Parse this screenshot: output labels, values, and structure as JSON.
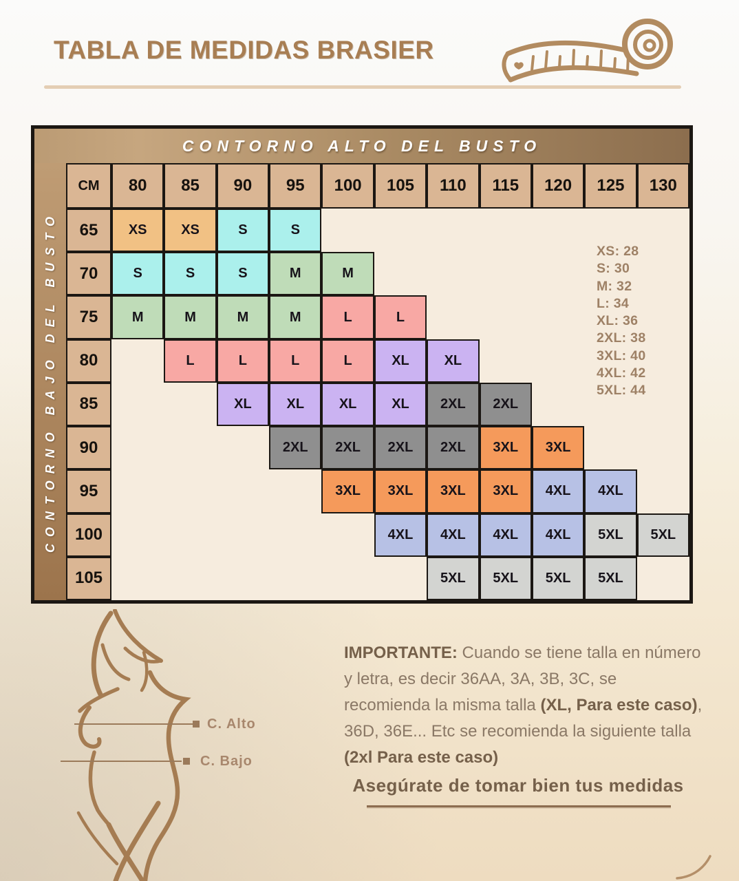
{
  "header": {
    "title": "TABLA DE MEDIDAS BRASIER"
  },
  "chart_data": {
    "type": "table",
    "title": "TABLA DE MEDIDAS BRASIER",
    "x_axis_label": "CONTORNO ALTO DEL BUSTO",
    "y_axis_label": "CONTORNO BAJO DEL BUSTO",
    "unit_label": "CM",
    "columns": [
      "80",
      "85",
      "90",
      "95",
      "100",
      "105",
      "110",
      "115",
      "120",
      "125",
      "130"
    ],
    "rows": [
      {
        "label": "65",
        "cells": [
          "XS",
          "XS",
          "S",
          "S",
          null,
          null,
          null,
          null,
          null,
          null,
          null
        ]
      },
      {
        "label": "70",
        "cells": [
          "S",
          "S",
          "S",
          "M",
          "M",
          null,
          null,
          null,
          null,
          null,
          null
        ]
      },
      {
        "label": "75",
        "cells": [
          "M",
          "M",
          "M",
          "M",
          "L",
          "L",
          null,
          null,
          null,
          null,
          null
        ]
      },
      {
        "label": "80",
        "cells": [
          null,
          "L",
          "L",
          "L",
          "L",
          "XL",
          "XL",
          null,
          null,
          null,
          null
        ]
      },
      {
        "label": "85",
        "cells": [
          null,
          null,
          "XL",
          "XL",
          "XL",
          "XL",
          "2XL",
          "2XL",
          null,
          null,
          null
        ]
      },
      {
        "label": "90",
        "cells": [
          null,
          null,
          null,
          "2XL",
          "2XL",
          "2XL",
          "2XL",
          "3XL",
          "3XL",
          null,
          null
        ]
      },
      {
        "label": "95",
        "cells": [
          null,
          null,
          null,
          null,
          "3XL",
          "3XL",
          "3XL",
          "3XL",
          "4XL",
          "4XL",
          null
        ]
      },
      {
        "label": "100",
        "cells": [
          null,
          null,
          null,
          null,
          null,
          "4XL",
          "4XL",
          "4XL",
          "4XL",
          "5XL",
          "5XL"
        ]
      },
      {
        "label": "105",
        "cells": [
          null,
          null,
          null,
          null,
          null,
          null,
          "5XL",
          "5XL",
          "5XL",
          "5XL",
          null
        ]
      }
    ],
    "size_colors": {
      "XS": "#f1c184",
      "S": "#abf0ec",
      "M": "#bfdcb8",
      "L": "#f8a8a4",
      "XL": "#cbb3f2",
      "2XL": "#8f8f8f",
      "3XL": "#f59a5b",
      "4XL": "#b7c1e5",
      "5XL": "#d3d4d1"
    },
    "legend_lines": [
      "XS: 28",
      "S: 30",
      "M: 32",
      "L: 34",
      "XL: 36",
      "2XL: 38",
      "3XL: 40",
      "4XL: 42",
      "5XL: 44"
    ],
    "legend_position": "top-right-inside"
  },
  "figure": {
    "alto_label": "C. Alto",
    "bajo_label": "C. Bajo"
  },
  "note": {
    "segments": [
      {
        "text": "IMPORTANTE: ",
        "bold": true
      },
      {
        "text": "Cuando se tiene talla en número y letra, es decir 36AA, 3A, 3B, 3C, se recomienda la misma talla ",
        "bold": false
      },
      {
        "text": "(XL, Para este caso)",
        "bold": true
      },
      {
        "text": ", 36D, 36E... Etc se recomienda la siguiente talla ",
        "bold": false
      },
      {
        "text": "(2xl Para este caso)",
        "bold": true
      }
    ]
  },
  "footer": {
    "tagline": "Asegúrate de tomar bien tus medidas"
  },
  "theme": {
    "title_color": "#a87e53",
    "band_gradient": [
      "#c6a67f",
      "#8c6e4e"
    ],
    "side_bar_gradient": [
      "#bf9c74",
      "#9c744c"
    ],
    "row_header_bg": "#dab694",
    "table_bg": "#f6ecde",
    "border_black": "#1b1713",
    "legend_color": "#9e8166",
    "note_color": "#8a7866",
    "note_bold_color": "#75604a",
    "figure_color": "#a57c52",
    "tape_color": "#b28b60",
    "measure_line_color": "#9b7a5a"
  }
}
